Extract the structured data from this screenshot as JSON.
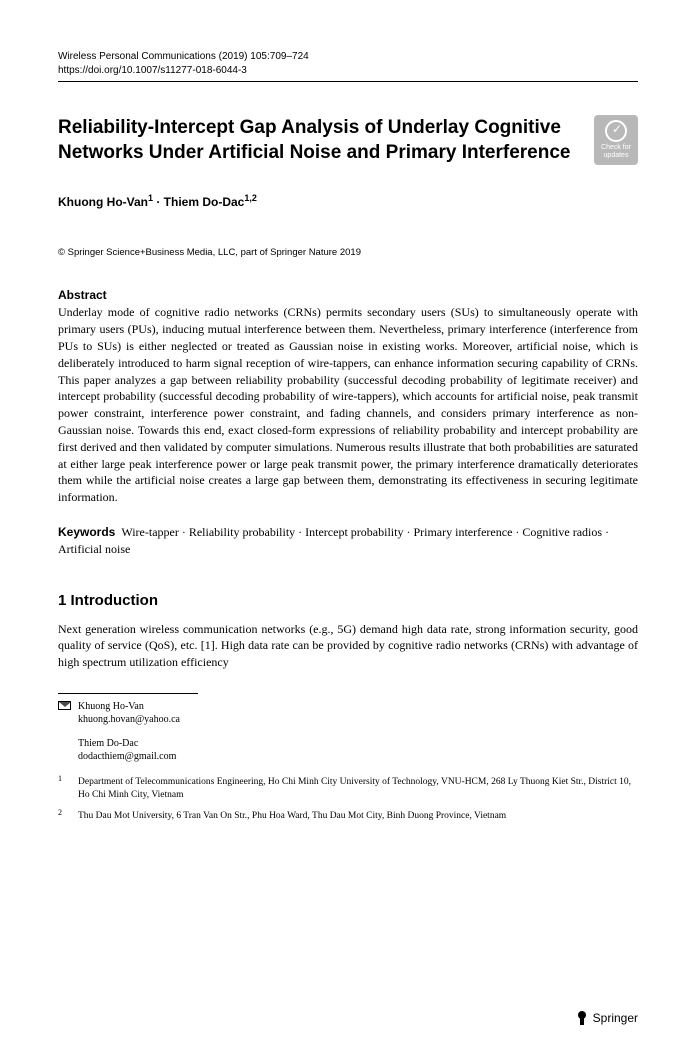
{
  "meta": {
    "journal_line": "Wireless Personal Communications (2019) 105:709–724",
    "doi_line": "https://doi.org/10.1007/s11277-018-6044-3"
  },
  "badge": {
    "line1": "Check for",
    "line2": "updates"
  },
  "title": "Reliability-Intercept Gap Analysis of Underlay Cognitive Networks Under Artificial Noise and Primary Interference",
  "authors_html": "Khuong Ho-Van<sup>1</sup> · Thiem Do-Dac<sup>1,2</sup>",
  "copyright": "© Springer Science+Business Media, LLC, part of Springer Nature 2019",
  "abstract": {
    "label": "Abstract",
    "text": "Underlay mode of cognitive radio networks (CRNs) permits secondary users (SUs) to simultaneously operate with primary users (PUs), inducing mutual interference between them. Nevertheless, primary interference (interference from PUs to SUs) is either neglected or treated as Gaussian noise in existing works. Moreover, artificial noise, which is deliberately introduced to harm signal reception of wire-tappers, can enhance information securing capability of CRNs. This paper analyzes a gap between reliability probability (successful decoding probability of legitimate receiver) and intercept probability (successful decoding probability of wire-tappers), which accounts for artificial noise, peak transmit power constraint, interference power constraint, and fading channels, and considers primary interference as non-Gaussian noise. Towards this end, exact closed-form expressions of reliability probability and intercept probability are first derived and then validated by computer simulations. Numerous results illustrate that both probabilities are saturated at either large peak interference power or large peak transmit power, the primary interference dramatically deteriorates them while the artificial noise creates a large gap between them, demonstrating its effectiveness in securing legitimate information."
  },
  "keywords": {
    "label": "Keywords",
    "text": "Wire-tapper · Reliability probability · Intercept probability · Primary interference · Cognitive radios · Artificial noise"
  },
  "section1": {
    "heading": "1  Introduction",
    "para": "Next generation wireless communication networks (e.g., 5G) demand high data rate, strong information security, good quality of service (QoS), etc. [1]. High data rate can be provided by cognitive radio networks (CRNs) with advantage of high spectrum utilization efficiency"
  },
  "correspondence": {
    "author1_name": "Khuong Ho-Van",
    "author1_email": "khuong.hovan@yahoo.ca",
    "author2_name": "Thiem Do-Dac",
    "author2_email": "dodacthiem@gmail.com"
  },
  "affiliations": [
    {
      "num": "1",
      "text": "Department of Telecommunications Engineering, Ho Chi Minh City University of Technology, VNU-HCM, 268 Ly Thuong Kiet Str., District 10, Ho Chi Minh City, Vietnam"
    },
    {
      "num": "2",
      "text": "Thu Dau Mot University, 6 Tran Van On Str., Phu Hoa Ward, Thu Dau Mot City, Binh Duong Province, Vietnam"
    }
  ],
  "publisher": "Springer"
}
